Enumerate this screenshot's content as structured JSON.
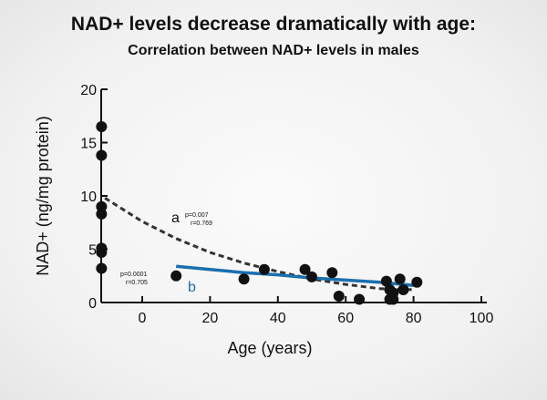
{
  "title": "NAD+ levels decrease dramatically with age:",
  "subtitle": "Correlation between NAD+ levels in males",
  "colors": {
    "points": "#111111",
    "curve_a": "#333333",
    "curve_b": "#1a6fae"
  },
  "chart_data": {
    "type": "scatter",
    "xlabel": "Age (years)",
    "ylabel": "NAD+ (ng/mg protein)",
    "xlim": [
      -12,
      100
    ],
    "ylim": [
      0,
      20
    ],
    "xticks": [
      "0",
      "20",
      "40",
      "60",
      "80",
      "100"
    ],
    "yticks": [
      "0",
      "5",
      "10",
      "15",
      "20"
    ],
    "grid": false,
    "points": [
      [
        -12,
        16.5
      ],
      [
        -12,
        13.8
      ],
      [
        -12,
        9.0
      ],
      [
        -12,
        8.3
      ],
      [
        -12,
        5.1
      ],
      [
        -12,
        4.7
      ],
      [
        -12,
        3.2
      ],
      [
        10,
        2.5
      ],
      [
        30,
        2.2
      ],
      [
        36,
        3.1
      ],
      [
        48,
        3.1
      ],
      [
        50,
        2.4
      ],
      [
        56,
        2.8
      ],
      [
        58,
        0.6
      ],
      [
        64,
        0.3
      ],
      [
        72,
        2.0
      ],
      [
        73,
        0.3
      ],
      [
        73,
        1.2
      ],
      [
        74,
        0.9
      ],
      [
        74,
        0.3
      ],
      [
        76,
        2.2
      ],
      [
        77,
        1.2
      ],
      [
        81,
        1.9
      ]
    ],
    "fits": [
      {
        "label": "a",
        "style": "dashed",
        "p": "p=0.007",
        "r": "r=0.769",
        "x": [
          -11,
          0,
          10,
          20,
          30,
          40,
          50,
          60,
          70,
          80
        ],
        "y": [
          9.8,
          7.6,
          6.0,
          4.7,
          3.7,
          2.9,
          2.2,
          1.7,
          1.3,
          1.2
        ]
      },
      {
        "label": "b",
        "style": "solid",
        "p": "p=0.0001",
        "r": "r=0.705",
        "x": [
          10,
          20,
          30,
          40,
          50,
          60,
          70,
          80
        ],
        "y": [
          3.4,
          3.1,
          2.8,
          2.6,
          2.3,
          2.1,
          1.9,
          1.6
        ]
      }
    ]
  }
}
